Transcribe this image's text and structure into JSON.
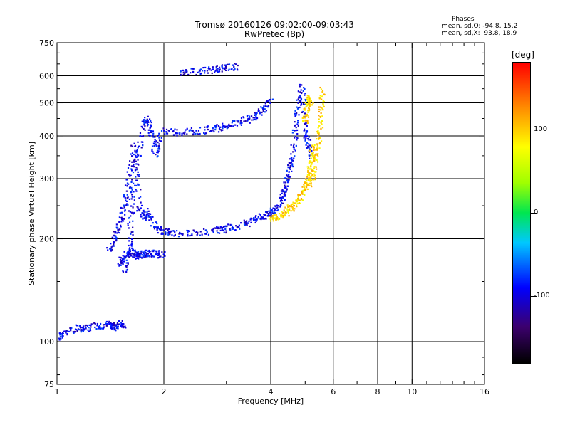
{
  "title_line1": "Tromsø 20160126 09:02:00-09:03:43",
  "title_line2": "RwPretec (8p)",
  "phase_info": {
    "heading": "Phases",
    "line_o": "mean, sd,O: -94.8, 15.2",
    "line_x": "mean, sd,X:  93.8, 18.9"
  },
  "colorbar": {
    "unit": "[deg]",
    "ticks": [
      "100",
      "0",
      "-100"
    ],
    "tick_values": [
      100,
      0,
      -100
    ],
    "range": [
      -180,
      180
    ]
  },
  "chart_data": {
    "type": "scatter",
    "xlabel": "Frequency [MHz]",
    "ylabel": "Stationary phase Virtual Height [km]",
    "x_scale": "log",
    "y_scale": "log",
    "xlim": [
      1,
      16
    ],
    "ylim": [
      75,
      750
    ],
    "xticks": [
      1,
      2,
      4,
      6,
      8,
      10,
      16
    ],
    "xtick_labels": [
      "1",
      "2",
      "4",
      "6",
      "8",
      "10",
      "16"
    ],
    "yticks": [
      75,
      100,
      200,
      300,
      400,
      500,
      600,
      750
    ],
    "ytick_labels": [
      "75",
      "100",
      "200",
      "300",
      "400",
      "500",
      "600",
      "750"
    ],
    "grid_x": [
      2,
      4,
      6,
      8,
      10
    ],
    "grid_y": [
      100,
      200,
      300,
      400,
      500,
      600
    ],
    "grid": true,
    "series": [
      {
        "mode": "O",
        "color_mean_deg": -94.8,
        "traces": [
          {
            "x": [
              1.0,
              1.05,
              1.15,
              1.2,
              1.3,
              1.4,
              1.45,
              1.5,
              1.55
            ],
            "y": [
              102,
              106,
              110,
              109,
              111,
              112,
              110,
              113,
              110
            ]
          },
          {
            "x": [
              1.4,
              1.45,
              1.5,
              1.55,
              1.6,
              1.65,
              1.7,
              1.75,
              1.8,
              1.9,
              2.0
            ],
            "y": [
              185,
              200,
              220,
              250,
              300,
              380,
              250,
              230,
              240,
              215,
              210
            ]
          },
          {
            "x": [
              1.55,
              1.6,
              1.62,
              1.65,
              1.7,
              1.75,
              1.8,
              1.85,
              1.9,
              1.95
            ],
            "y": [
              160,
              190,
              240,
              300,
              360,
              430,
              450,
              400,
              350,
              410
            ]
          },
          {
            "x": [
              2.0,
              2.2,
              2.5,
              2.8,
              3.0,
              3.3,
              3.6,
              3.8,
              4.0,
              4.2,
              4.4,
              4.6
            ],
            "y": [
              210,
              208,
              209,
              211,
              214,
              219,
              226,
              232,
              238,
              250,
              280,
              350
            ]
          },
          {
            "x": [
              2.0,
              2.2,
              2.5,
              2.8,
              3.0,
              3.3,
              3.6,
              3.8,
              4.0
            ],
            "y": [
              412,
              410,
              413,
              420,
              428,
              440,
              455,
              475,
              510
            ]
          },
          {
            "x": [
              2.2,
              2.5,
              2.8,
              3.0,
              3.2
            ],
            "y": [
              612,
              618,
              625,
              632,
              640
            ]
          },
          {
            "x": [
              4.3,
              4.45,
              4.6,
              4.7,
              4.8,
              4.9,
              5.0,
              5.1,
              5.2
            ],
            "y": [
              260,
              300,
              350,
              420,
              500,
              560,
              430,
              380,
              350
            ]
          },
          {
            "x": [
              1.5,
              1.55,
              1.6,
              1.65,
              1.7,
              1.75,
              1.8,
              1.9,
              2.0
            ],
            "y": [
              170,
              175,
              185,
              180,
              178,
              180,
              182,
              180,
              181
            ]
          }
        ]
      },
      {
        "mode": "X",
        "color_mean_deg": 93.8,
        "traces": [
          {
            "x": [
              4.0,
              4.2,
              4.4,
              4.6,
              4.8,
              5.0,
              5.1,
              5.2,
              5.3
            ],
            "y": [
              228,
              232,
              238,
              248,
              260,
              280,
              300,
              330,
              380
            ]
          },
          {
            "x": [
              5.2,
              5.3,
              5.4,
              5.5,
              5.55,
              5.6
            ],
            "y": [
              290,
              320,
              360,
              420,
              480,
              560
            ]
          },
          {
            "x": [
              5.0,
              5.05,
              5.1,
              5.2
            ],
            "y": [
              440,
              480,
              520,
              500
            ]
          }
        ]
      }
    ]
  }
}
